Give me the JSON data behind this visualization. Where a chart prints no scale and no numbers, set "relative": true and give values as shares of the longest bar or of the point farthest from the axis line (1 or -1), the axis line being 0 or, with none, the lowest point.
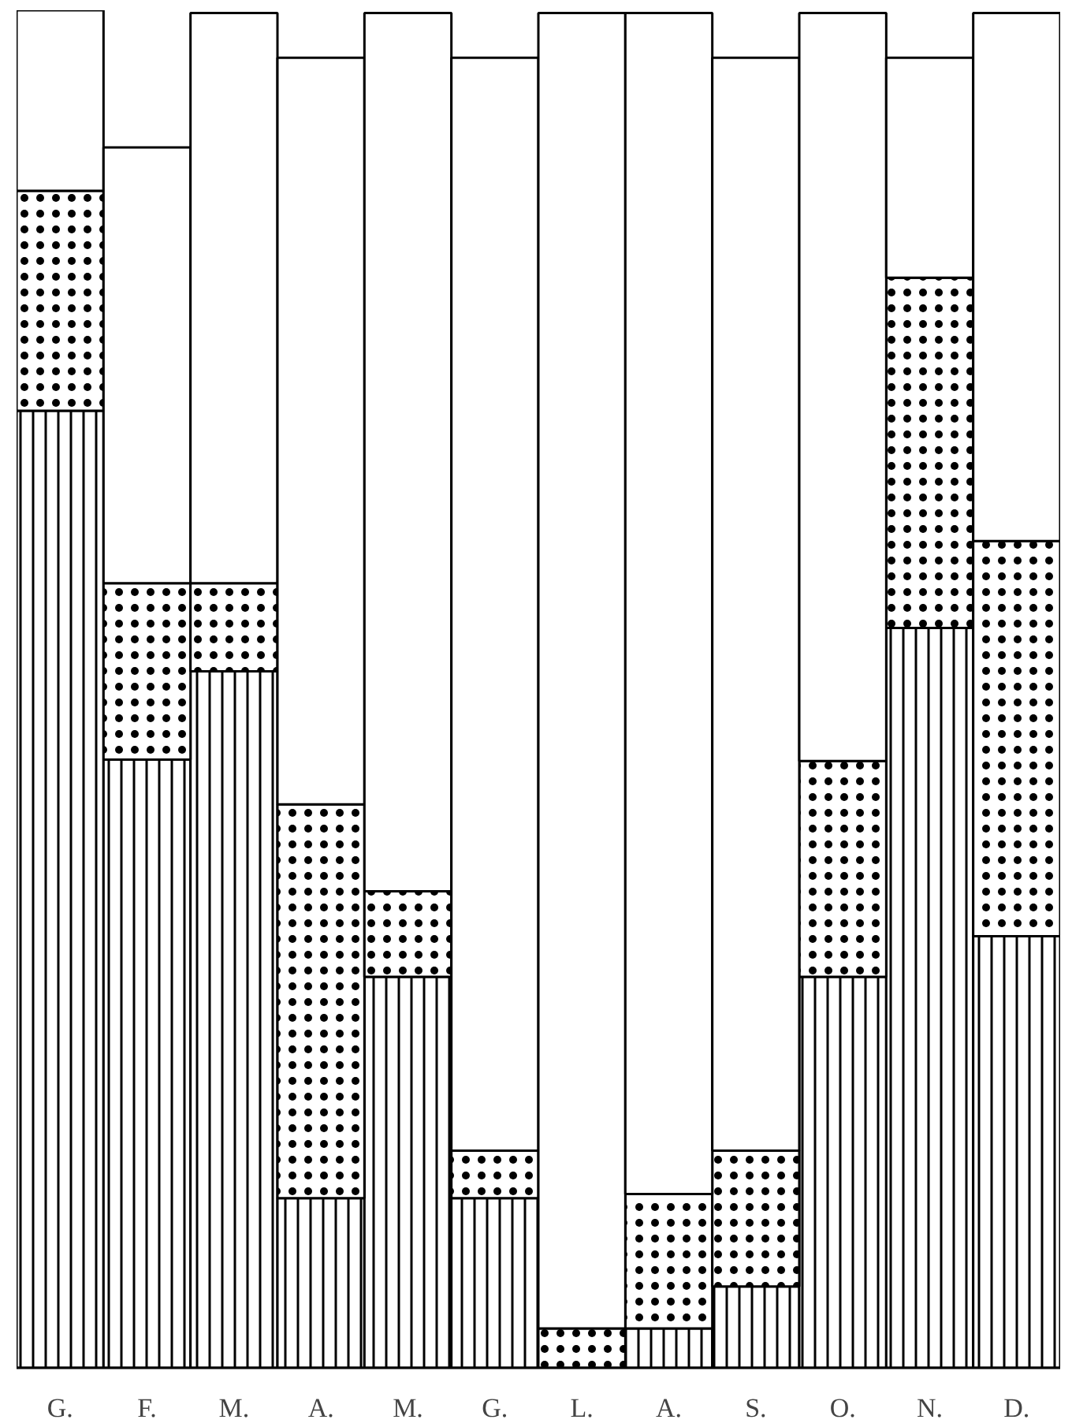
{
  "chart_data": {
    "type": "bar",
    "stacked": true,
    "relative": true,
    "categories": [
      "G.",
      "F.",
      "M.",
      "A.",
      "M.",
      "G.",
      "L.",
      "A.",
      "S.",
      "O.",
      "N.",
      "D."
    ],
    "series": [
      {
        "color": "#000000",
        "values": [
          0.705,
          0.448,
          0.513,
          0.125,
          0.288,
          0.125,
          0,
          0.029,
          0.06,
          0.288,
          0.545,
          0.318
        ]
      },
      {
        "color": "#000000",
        "values": [
          0.162,
          0.13,
          0.065,
          0.29,
          0.063,
          0.035,
          0.029,
          0.099,
          0.1,
          0.159,
          0.258,
          0.291
        ]
      },
      {
        "color": "#000000",
        "values": [
          0.133,
          0.321,
          0.42,
          0.55,
          0.647,
          0.805,
          0.969,
          0.87,
          0.805,
          0.551,
          0.162,
          0.389
        ]
      }
    ]
  }
}
